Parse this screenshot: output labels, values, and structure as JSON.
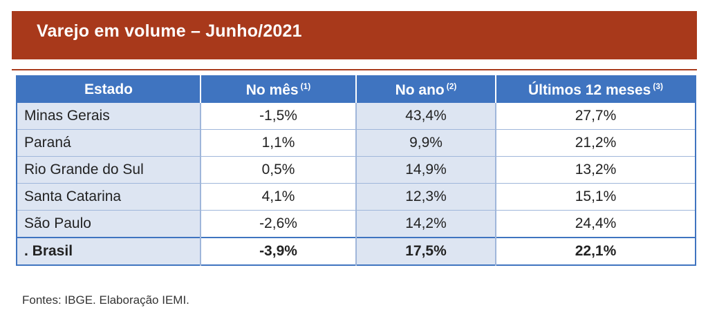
{
  "title": "Varejo em volume – Junho/2021",
  "headers": {
    "estado": "Estado",
    "mes": "No mês",
    "mes_note": "(1)",
    "ano": "No ano",
    "ano_note": "(2)",
    "ultimos": "Últimos 12 meses",
    "ultimos_note": "(3)"
  },
  "rows": [
    {
      "estado": "Minas Gerais",
      "mes": "-1,5%",
      "ano": "43,4%",
      "ultimos": "27,7%"
    },
    {
      "estado": "Paraná",
      "mes": "1,1%",
      "ano": "9,9%",
      "ultimos": "21,2%"
    },
    {
      "estado": "Rio Grande do Sul",
      "mes": "0,5%",
      "ano": "14,9%",
      "ultimos": "13,2%"
    },
    {
      "estado": "Santa Catarina",
      "mes": "4,1%",
      "ano": "12,3%",
      "ultimos": "15,1%"
    },
    {
      "estado": "São Paulo",
      "mes": "-2,6%",
      "ano": "14,2%",
      "ultimos": "24,4%"
    },
    {
      "estado": ". Brasil",
      "mes": "-3,9%",
      "ano": "17,5%",
      "ultimos": "22,1%"
    }
  ],
  "source": "Fontes: IBGE. Elaboração IEMI.",
  "colors": {
    "banner": "#a8391b",
    "header": "#3f74c0",
    "shade": "#dde5f2"
  }
}
